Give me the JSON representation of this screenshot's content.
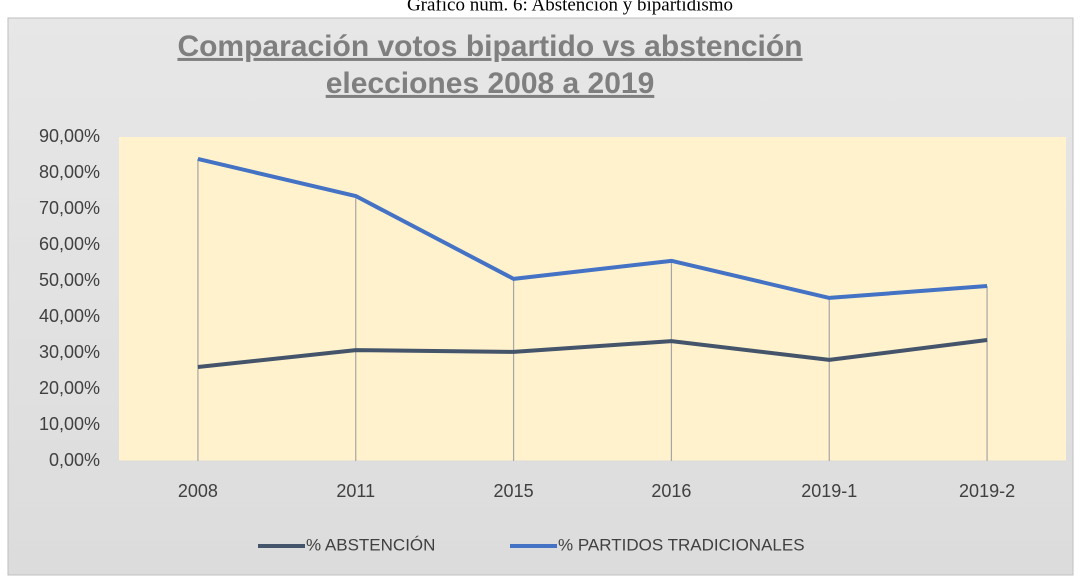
{
  "caption": "Gráfico núm. 6: Abstención y bipartidismo",
  "chart_data": {
    "type": "line",
    "title": [
      "Comparación votos bipartido vs abstención",
      "elecciones 2008 a 2019"
    ],
    "categories": [
      "2008",
      "2011",
      "2015",
      "2016",
      "2019-1",
      "2019-2"
    ],
    "series": [
      {
        "name": "% ABSTENCIÓN",
        "color": "#44546a",
        "values": [
          26.1,
          30.8,
          30.3,
          33.3,
          28.1,
          33.6
        ]
      },
      {
        "name": "% PARTIDOS TRADICIONALES",
        "color": "#4472c4",
        "values": [
          83.9,
          73.6,
          50.6,
          55.6,
          45.3,
          48.6
        ]
      }
    ],
    "ylim": [
      0,
      90
    ],
    "yticks": [
      {
        "value": 0,
        "label": "0,00%"
      },
      {
        "value": 10,
        "label": "10,00%"
      },
      {
        "value": 20,
        "label": "20,00%"
      },
      {
        "value": 30,
        "label": "30,00%"
      },
      {
        "value": 40,
        "label": "40,00%"
      },
      {
        "value": 50,
        "label": "50,00%"
      },
      {
        "value": 60,
        "label": "60,00%"
      },
      {
        "value": 70,
        "label": "70,00%"
      },
      {
        "value": 80,
        "label": "80,00%"
      },
      {
        "value": 90,
        "label": "90,00%"
      }
    ],
    "plot_color": "#fff2cc",
    "legend": "bottom"
  }
}
